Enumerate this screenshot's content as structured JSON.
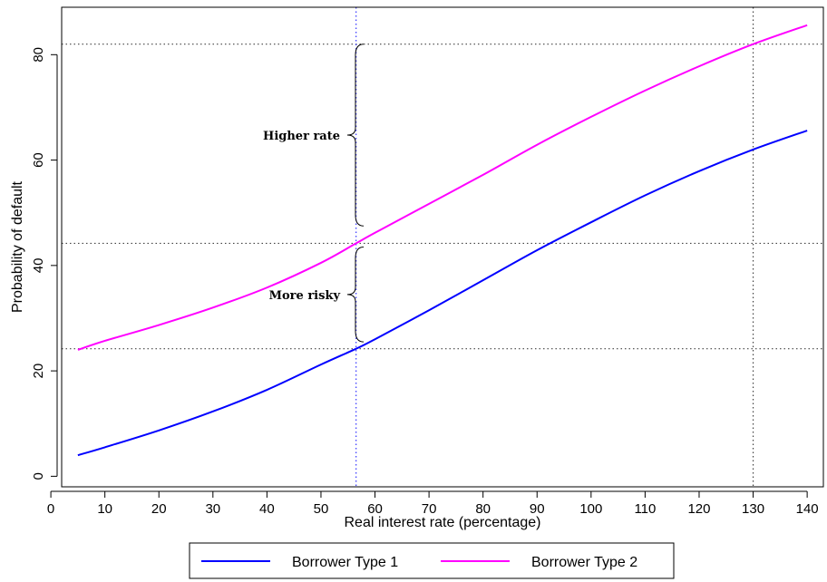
{
  "chart_data": {
    "type": "line",
    "xlabel": "Real interest rate (percentage)",
    "ylabel": "Probability of default",
    "xlim": [
      2,
      143
    ],
    "ylim": [
      -2,
      89
    ],
    "xticks": [
      0,
      10,
      20,
      30,
      40,
      50,
      60,
      70,
      80,
      90,
      100,
      110,
      120,
      130,
      140
    ],
    "yticks": [
      0,
      20,
      40,
      60,
      80
    ],
    "grid": false,
    "legend_position": "bottom",
    "series": [
      {
        "name": "Borrower Type 1",
        "color": "#0000ff",
        "x": [
          5,
          10,
          20,
          30,
          40,
          50,
          56.5,
          60,
          70,
          80,
          90,
          100,
          110,
          120,
          130,
          140
        ],
        "y": [
          4,
          5.5,
          8.7,
          12.3,
          16.4,
          21.2,
          24.2,
          26,
          31.5,
          37.2,
          42.9,
          48.2,
          53.3,
          57.9,
          62,
          65.6
        ]
      },
      {
        "name": "Borrower Type 2",
        "color": "#ff00ff",
        "x": [
          5,
          10,
          20,
          30,
          40,
          50,
          56.5,
          60,
          70,
          80,
          90,
          100,
          110,
          120,
          130,
          140
        ],
        "y": [
          24,
          25.7,
          28.7,
          32,
          35.8,
          40.5,
          44.2,
          46.2,
          51.7,
          57.2,
          62.9,
          68.2,
          73.2,
          77.8,
          82,
          85.6
        ]
      }
    ],
    "reference_lines": {
      "horizontal": [
        82,
        44.2,
        24.2
      ],
      "vertical_dark": [
        130
      ],
      "vertical_blue": [
        56.5
      ]
    },
    "annotations": [
      {
        "text": "Higher rate",
        "brace_from": 47.5,
        "brace_to": 82
      },
      {
        "text": "More risky",
        "brace_from": 25.5,
        "brace_to": 43.5
      }
    ]
  }
}
